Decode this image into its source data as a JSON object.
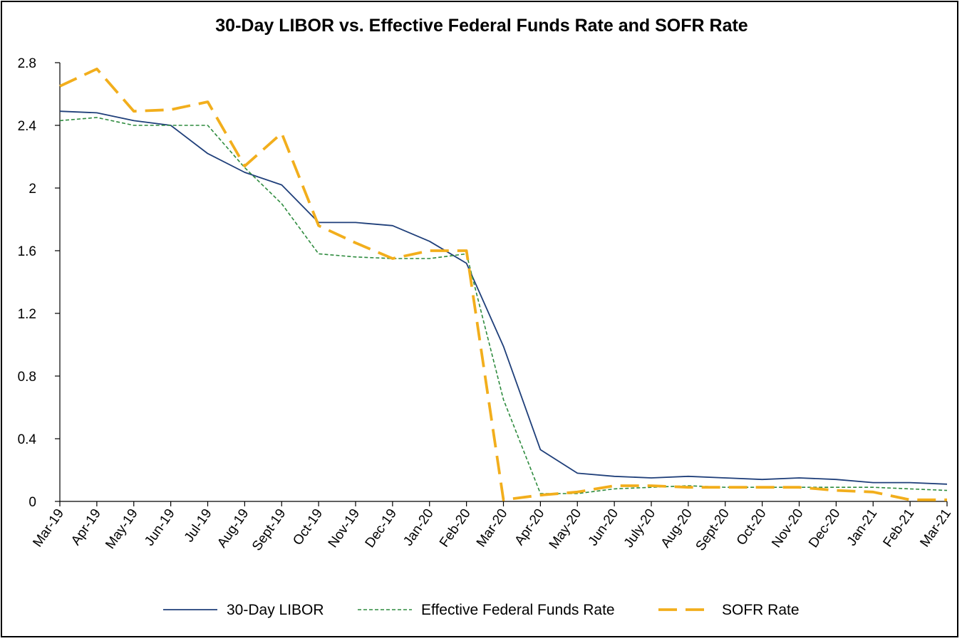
{
  "chart_data": {
    "type": "line",
    "title": "30-Day LIBOR vs. Effective Federal Funds Rate and SOFR Rate",
    "xlabel": "",
    "ylabel": "",
    "ylim": [
      0,
      2.8
    ],
    "yticks": [
      "0",
      "0.4",
      "0.8",
      "1.2",
      "1.6",
      "2",
      "2.4",
      "2.8"
    ],
    "ytick_values": [
      0,
      0.4,
      0.8,
      1.2,
      1.6,
      2.0,
      2.4,
      2.8
    ],
    "grid": false,
    "legend_position": "bottom",
    "categories": [
      "Mar-19",
      "Apr-19",
      "May-19",
      "Jun-19",
      "Jul-19",
      "Aug-19",
      "Sept-19",
      "Oct-19",
      "Nov-19",
      "Dec-19",
      "Jan-20",
      "Feb-20",
      "Mar-20",
      "Apr-20",
      "May-20",
      "Jun-20",
      "July-20",
      "Aug-20",
      "Sept-20",
      "Oct-20",
      "Nov-20",
      "Dec-20",
      "Jan-21",
      "Feb-21",
      "Mar-21"
    ],
    "series": [
      {
        "name": "30-Day LIBOR",
        "color": "#1f3f7a",
        "style": "solid",
        "values": [
          2.49,
          2.48,
          2.43,
          2.4,
          2.22,
          2.1,
          2.02,
          1.78,
          1.78,
          1.76,
          1.66,
          1.52,
          0.99,
          0.33,
          0.18,
          0.16,
          0.15,
          0.16,
          0.15,
          0.14,
          0.15,
          0.14,
          0.12,
          0.12,
          0.11
        ]
      },
      {
        "name": "Effective Federal Funds Rate",
        "color": "#2e8b3e",
        "style": "dotted",
        "values": [
          2.43,
          2.45,
          2.4,
          2.4,
          2.4,
          2.13,
          1.9,
          1.58,
          1.56,
          1.55,
          1.55,
          1.58,
          0.65,
          0.05,
          0.05,
          0.08,
          0.09,
          0.1,
          0.09,
          0.09,
          0.09,
          0.09,
          0.09,
          0.08,
          0.07
        ]
      },
      {
        "name": "SOFR Rate",
        "color": "#f2ae1c",
        "style": "dashed",
        "values": [
          2.65,
          2.76,
          2.49,
          2.5,
          2.55,
          2.14,
          2.35,
          1.76,
          1.65,
          1.55,
          1.6,
          1.6,
          0.01,
          0.04,
          0.06,
          0.1,
          0.1,
          0.09,
          0.09,
          0.09,
          0.09,
          0.07,
          0.06,
          0.01,
          0.01
        ]
      }
    ]
  }
}
